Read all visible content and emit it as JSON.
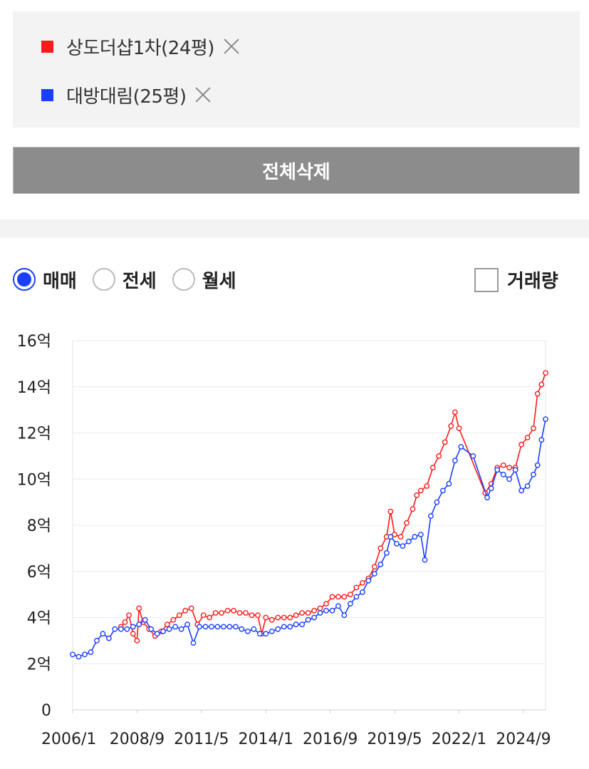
{
  "legend": {
    "items": [
      {
        "label": "상도더샵1차(24평)",
        "color": "#ff1a1a"
      },
      {
        "label": "대방대림(25평)",
        "color": "#1a3fff"
      }
    ]
  },
  "clear_all_label": "전체삭제",
  "trade_types": {
    "options": [
      {
        "label": "매매",
        "checked": true
      },
      {
        "label": "전세",
        "checked": false
      },
      {
        "label": "월세",
        "checked": false
      }
    ]
  },
  "volume_toggle": {
    "label": "거래량",
    "checked": false
  },
  "chart_data": {
    "type": "line",
    "title": "",
    "xlabel": "",
    "ylabel": "",
    "y_unit": "억",
    "ylim": [
      0,
      16
    ],
    "x_range": [
      "2006/1",
      "2025/8"
    ],
    "x_ticks": [
      "2006/1",
      "2008/9",
      "2011/5",
      "2014/1",
      "2016/9",
      "2019/5",
      "2022/1",
      "2024/9"
    ],
    "y_ticks": [
      "0",
      "2억",
      "4억",
      "6억",
      "8억",
      "10억",
      "12억",
      "14억",
      "16억"
    ],
    "grid": true,
    "series": [
      {
        "name": "상도더샵1차(24평)",
        "color": "#ff1a1a",
        "points": [
          [
            "2008/1",
            3.6
          ],
          [
            "2008/3",
            3.8
          ],
          [
            "2008/5",
            4.1
          ],
          [
            "2008/7",
            3.3
          ],
          [
            "2008/9",
            3.0
          ],
          [
            "2008/10",
            4.4
          ],
          [
            "2008/12",
            3.8
          ],
          [
            "2009/3",
            3.5
          ],
          [
            "2009/6",
            3.2
          ],
          [
            "2009/9",
            3.4
          ],
          [
            "2009/12",
            3.7
          ],
          [
            "2010/3",
            3.9
          ],
          [
            "2010/6",
            4.1
          ],
          [
            "2010/9",
            4.3
          ],
          [
            "2010/12",
            4.4
          ],
          [
            "2011/3",
            3.7
          ],
          [
            "2011/6",
            4.1
          ],
          [
            "2011/9",
            4.0
          ],
          [
            "2011/12",
            4.2
          ],
          [
            "2012/3",
            4.2
          ],
          [
            "2012/6",
            4.3
          ],
          [
            "2012/9",
            4.3
          ],
          [
            "2012/12",
            4.2
          ],
          [
            "2013/3",
            4.2
          ],
          [
            "2013/6",
            4.1
          ],
          [
            "2013/9",
            4.1
          ],
          [
            "2013/11",
            3.3
          ],
          [
            "2014/1",
            4.0
          ],
          [
            "2014/4",
            3.9
          ],
          [
            "2014/7",
            4.0
          ],
          [
            "2014/10",
            4.0
          ],
          [
            "2015/1",
            4.0
          ],
          [
            "2015/4",
            4.1
          ],
          [
            "2015/7",
            4.2
          ],
          [
            "2015/10",
            4.2
          ],
          [
            "2016/1",
            4.3
          ],
          [
            "2016/4",
            4.4
          ],
          [
            "2016/7",
            4.6
          ],
          [
            "2016/10",
            4.9
          ],
          [
            "2017/1",
            4.9
          ],
          [
            "2017/4",
            4.9
          ],
          [
            "2017/7",
            5.0
          ],
          [
            "2017/10",
            5.3
          ],
          [
            "2018/1",
            5.5
          ],
          [
            "2018/4",
            5.7
          ],
          [
            "2018/7",
            6.2
          ],
          [
            "2018/10",
            7.0
          ],
          [
            "2019/1",
            7.5
          ],
          [
            "2019/3",
            8.6
          ],
          [
            "2019/5",
            7.6
          ],
          [
            "2019/8",
            7.5
          ],
          [
            "2019/11",
            8.1
          ],
          [
            "2020/2",
            8.7
          ],
          [
            "2020/4",
            9.3
          ],
          [
            "2020/6",
            9.5
          ],
          [
            "2020/9",
            9.7
          ],
          [
            "2020/12",
            10.5
          ],
          [
            "2021/3",
            11.0
          ],
          [
            "2021/6",
            11.6
          ],
          [
            "2021/9",
            12.3
          ],
          [
            "2021/11",
            12.9
          ],
          [
            "2022/1",
            12.2
          ],
          [
            "2023/2",
            9.4
          ],
          [
            "2023/5",
            9.8
          ],
          [
            "2023/8",
            10.5
          ],
          [
            "2023/11",
            10.6
          ],
          [
            "2024/2",
            10.5
          ],
          [
            "2024/5",
            10.5
          ],
          [
            "2024/8",
            11.5
          ],
          [
            "2024/11",
            11.8
          ],
          [
            "2025/2",
            12.2
          ],
          [
            "2025/4",
            13.7
          ],
          [
            "2025/6",
            14.1
          ],
          [
            "2025/8",
            14.6
          ]
        ]
      },
      {
        "name": "대방대림(25평)",
        "color": "#1a3fff",
        "points": [
          [
            "2006/1",
            2.4
          ],
          [
            "2006/4",
            2.3
          ],
          [
            "2006/7",
            2.4
          ],
          [
            "2006/10",
            2.5
          ],
          [
            "2007/1",
            3.0
          ],
          [
            "2007/4",
            3.3
          ],
          [
            "2007/7",
            3.1
          ],
          [
            "2007/10",
            3.5
          ],
          [
            "2008/1",
            3.5
          ],
          [
            "2008/4",
            3.5
          ],
          [
            "2008/7",
            3.6
          ],
          [
            "2008/10",
            3.7
          ],
          [
            "2009/1",
            3.9
          ],
          [
            "2009/4",
            3.5
          ],
          [
            "2009/7",
            3.3
          ],
          [
            "2009/10",
            3.4
          ],
          [
            "2010/1",
            3.5
          ],
          [
            "2010/4",
            3.6
          ],
          [
            "2010/7",
            3.5
          ],
          [
            "2010/10",
            3.7
          ],
          [
            "2011/1",
            2.9
          ],
          [
            "2011/4",
            3.6
          ],
          [
            "2011/7",
            3.6
          ],
          [
            "2011/10",
            3.6
          ],
          [
            "2012/1",
            3.6
          ],
          [
            "2012/4",
            3.6
          ],
          [
            "2012/7",
            3.6
          ],
          [
            "2012/10",
            3.6
          ],
          [
            "2013/1",
            3.5
          ],
          [
            "2013/4",
            3.4
          ],
          [
            "2013/7",
            3.5
          ],
          [
            "2013/10",
            3.3
          ],
          [
            "2014/1",
            3.3
          ],
          [
            "2014/4",
            3.4
          ],
          [
            "2014/7",
            3.5
          ],
          [
            "2014/10",
            3.6
          ],
          [
            "2015/1",
            3.6
          ],
          [
            "2015/4",
            3.7
          ],
          [
            "2015/7",
            3.7
          ],
          [
            "2015/10",
            3.9
          ],
          [
            "2016/1",
            4.0
          ],
          [
            "2016/4",
            4.2
          ],
          [
            "2016/7",
            4.3
          ],
          [
            "2016/10",
            4.3
          ],
          [
            "2017/1",
            4.5
          ],
          [
            "2017/4",
            4.1
          ],
          [
            "2017/7",
            4.6
          ],
          [
            "2017/10",
            4.9
          ],
          [
            "2018/1",
            5.1
          ],
          [
            "2018/4",
            5.6
          ],
          [
            "2018/7",
            5.9
          ],
          [
            "2018/10",
            6.3
          ],
          [
            "2019/1",
            6.8
          ],
          [
            "2019/3",
            7.5
          ],
          [
            "2019/6",
            7.2
          ],
          [
            "2019/9",
            7.1
          ],
          [
            "2019/12",
            7.3
          ],
          [
            "2020/3",
            7.5
          ],
          [
            "2020/6",
            7.6
          ],
          [
            "2020/8",
            6.5
          ],
          [
            "2020/11",
            8.4
          ],
          [
            "2021/2",
            9.0
          ],
          [
            "2021/5",
            9.5
          ],
          [
            "2021/8",
            9.8
          ],
          [
            "2021/11",
            10.8
          ],
          [
            "2022/2",
            11.4
          ],
          [
            "2022/8",
            11.0
          ],
          [
            "2023/3",
            9.2
          ],
          [
            "2023/5",
            9.6
          ],
          [
            "2023/8",
            10.4
          ],
          [
            "2023/11",
            10.2
          ],
          [
            "2024/2",
            10.0
          ],
          [
            "2024/5",
            10.4
          ],
          [
            "2024/8",
            9.5
          ],
          [
            "2024/11",
            9.7
          ],
          [
            "2025/2",
            10.2
          ],
          [
            "2025/4",
            10.6
          ],
          [
            "2025/6",
            11.7
          ],
          [
            "2025/8",
            12.6
          ]
        ]
      }
    ]
  }
}
